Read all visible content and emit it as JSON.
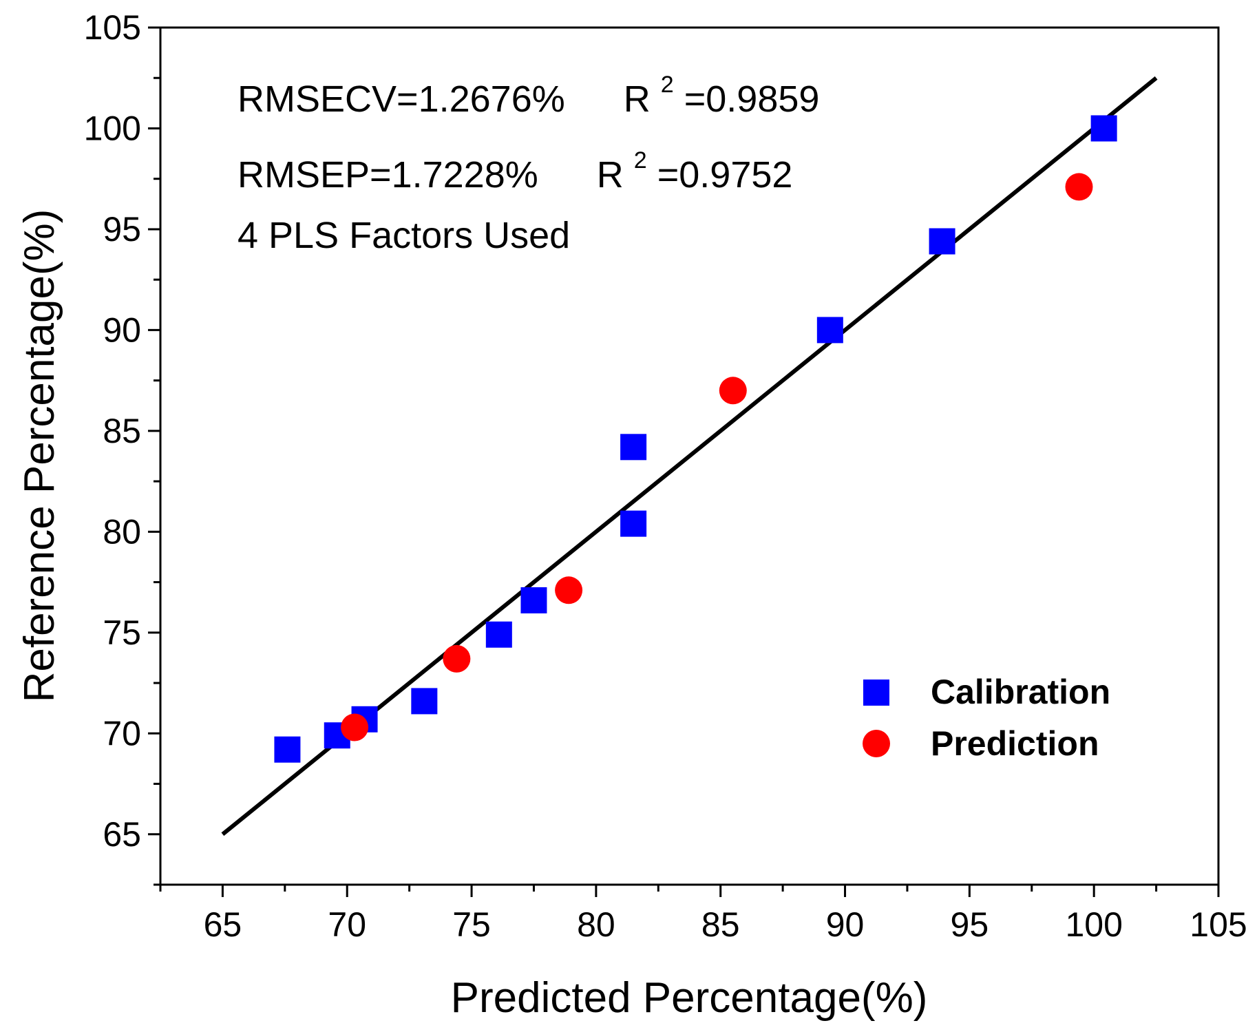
{
  "chart_data": {
    "type": "scatter",
    "xlabel": "Predicted Percentage(%)",
    "ylabel": "Reference Percentage(%)",
    "xlim": [
      62.5,
      105
    ],
    "ylim": [
      62.5,
      105
    ],
    "xticks": [
      65,
      70,
      75,
      80,
      85,
      90,
      95,
      100,
      105
    ],
    "yticks": [
      65,
      70,
      75,
      80,
      85,
      90,
      95,
      100,
      105
    ],
    "grid": false,
    "legend_position": "bottom-right",
    "annotations": [
      {
        "text": "RMSECV=1.2676%",
        "r2_base": "R",
        "r2_sup": "2",
        "r2_value": "=0.9859"
      },
      {
        "text": "RMSEP=1.7228%",
        "r2_base": "R",
        "r2_sup": "2",
        "r2_value": "=0.9752"
      },
      {
        "text": "4 PLS Factors Used"
      }
    ],
    "fit_line": {
      "x": [
        65,
        102.5
      ],
      "y": [
        65,
        102.5
      ],
      "color": "#000000"
    },
    "series": [
      {
        "name": "Calibration",
        "marker": "square",
        "color": "#0000ff",
        "points": [
          {
            "x": 67.6,
            "y": 69.2
          },
          {
            "x": 69.6,
            "y": 69.9
          },
          {
            "x": 70.7,
            "y": 70.7
          },
          {
            "x": 73.1,
            "y": 71.6
          },
          {
            "x": 76.1,
            "y": 74.9
          },
          {
            "x": 77.5,
            "y": 76.6
          },
          {
            "x": 81.5,
            "y": 84.2
          },
          {
            "x": 81.5,
            "y": 80.4
          },
          {
            "x": 89.4,
            "y": 90.0
          },
          {
            "x": 93.9,
            "y": 94.4
          },
          {
            "x": 100.4,
            "y": 100.0
          }
        ]
      },
      {
        "name": "Prediction",
        "marker": "circle",
        "color": "#ff0000",
        "points": [
          {
            "x": 70.3,
            "y": 70.3
          },
          {
            "x": 74.4,
            "y": 73.7
          },
          {
            "x": 78.9,
            "y": 77.1
          },
          {
            "x": 85.5,
            "y": 87.0
          },
          {
            "x": 99.4,
            "y": 97.1
          }
        ]
      }
    ]
  }
}
